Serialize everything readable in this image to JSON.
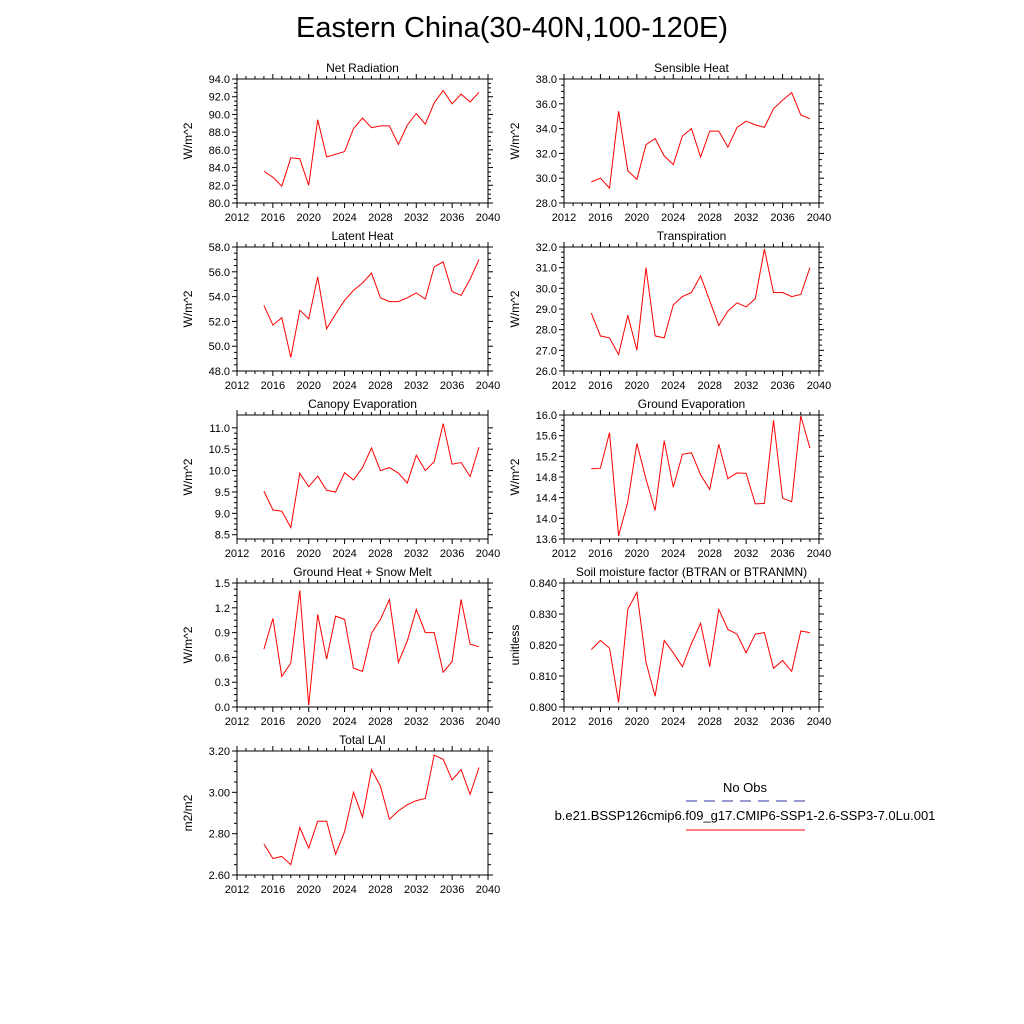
{
  "figure": {
    "title": "Eastern China(30-40N,100-120E)"
  },
  "legend": {
    "entries": [
      {
        "label": "No Obs",
        "color": "#3333aa",
        "style": "dashed"
      },
      {
        "label": "b.e21.BSSP126cmip6.f09_g17.CMIP6-SSP1-2.6-SSP3-7.0Lu.001",
        "color": "#ff0000",
        "style": "solid"
      }
    ]
  },
  "chart_data": [
    {
      "type": "line",
      "title": "Net Radiation",
      "ylabel": "W/m^2",
      "xlim": [
        2012,
        2040
      ],
      "ylim": [
        80,
        94
      ],
      "xticks": [
        2012,
        2016,
        2020,
        2024,
        2028,
        2032,
        2036,
        2040
      ],
      "xtick_labels": [
        "2012",
        "2016",
        "2020",
        "2024",
        "2028",
        "2032",
        "2036",
        "2040"
      ],
      "yticks": [
        80,
        82,
        84,
        86,
        88,
        90,
        92,
        94
      ],
      "ytick_labels": [
        "80.0",
        "82.0",
        "84.0",
        "86.0",
        "88.0",
        "90.0",
        "92.0",
        "94.0"
      ],
      "x": [
        2015,
        2016,
        2017,
        2018,
        2019,
        2020,
        2021,
        2022,
        2023,
        2024,
        2025,
        2026,
        2027,
        2028,
        2029,
        2030,
        2031,
        2032,
        2033,
        2034,
        2035,
        2036,
        2037,
        2038,
        2039
      ],
      "series": [
        {
          "color": "#ff0000",
          "values": [
            83.6,
            82.9,
            81.9,
            85.1,
            85.0,
            82.0,
            89.4,
            85.2,
            85.5,
            85.8,
            88.4,
            89.6,
            88.5,
            88.7,
            88.7,
            86.6,
            88.8,
            90.1,
            88.9,
            91.3,
            92.7,
            91.2,
            92.3,
            91.4,
            92.5
          ]
        }
      ]
    },
    {
      "type": "line",
      "title": "Sensible Heat",
      "ylabel": "W/m^2",
      "xlim": [
        2012,
        2040
      ],
      "ylim": [
        28,
        38
      ],
      "xticks": [
        2012,
        2016,
        2020,
        2024,
        2028,
        2032,
        2036,
        2040
      ],
      "xtick_labels": [
        "2012",
        "2016",
        "2020",
        "2024",
        "2028",
        "2032",
        "2036",
        "2040"
      ],
      "yticks": [
        28,
        30,
        32,
        34,
        36,
        38
      ],
      "ytick_labels": [
        "28.0",
        "30.0",
        "32.0",
        "34.0",
        "36.0",
        "38.0"
      ],
      "x": [
        2015,
        2016,
        2017,
        2018,
        2019,
        2020,
        2021,
        2022,
        2023,
        2024,
        2025,
        2026,
        2027,
        2028,
        2029,
        2030,
        2031,
        2032,
        2033,
        2034,
        2035,
        2036,
        2037,
        2038,
        2039
      ],
      "series": [
        {
          "color": "#ff0000",
          "values": [
            29.7,
            30.0,
            29.2,
            35.4,
            30.6,
            29.9,
            32.7,
            33.2,
            31.8,
            31.1,
            33.4,
            34.0,
            31.7,
            33.8,
            33.8,
            32.5,
            34.1,
            34.6,
            34.3,
            34.1,
            35.6,
            36.3,
            36.9,
            35.1,
            34.8
          ]
        }
      ]
    },
    {
      "type": "line",
      "title": "Latent Heat",
      "ylabel": "W/m^2",
      "xlim": [
        2012,
        2040
      ],
      "ylim": [
        48,
        58
      ],
      "xticks": [
        2012,
        2016,
        2020,
        2024,
        2028,
        2032,
        2036,
        2040
      ],
      "xtick_labels": [
        "2012",
        "2016",
        "2020",
        "2024",
        "2028",
        "2032",
        "2036",
        "2040"
      ],
      "yticks": [
        48,
        50,
        52,
        54,
        56,
        58
      ],
      "ytick_labels": [
        "48.0",
        "50.0",
        "52.0",
        "54.0",
        "56.0",
        "58.0"
      ],
      "x": [
        2015,
        2016,
        2017,
        2018,
        2019,
        2020,
        2021,
        2022,
        2023,
        2024,
        2025,
        2026,
        2027,
        2028,
        2029,
        2030,
        2031,
        2032,
        2033,
        2034,
        2035,
        2036,
        2037,
        2038,
        2039
      ],
      "series": [
        {
          "color": "#ff0000",
          "values": [
            53.3,
            51.7,
            52.3,
            49.1,
            52.9,
            52.2,
            55.6,
            51.4,
            52.6,
            53.7,
            54.5,
            55.1,
            55.9,
            53.9,
            53.6,
            53.6,
            53.9,
            54.3,
            53.8,
            56.4,
            56.8,
            54.4,
            54.1,
            55.4,
            57.0
          ]
        }
      ]
    },
    {
      "type": "line",
      "title": "Transpiration",
      "ylabel": "W/m^2",
      "xlim": [
        2012,
        2040
      ],
      "ylim": [
        26,
        32
      ],
      "xticks": [
        2012,
        2016,
        2020,
        2024,
        2028,
        2032,
        2036,
        2040
      ],
      "xtick_labels": [
        "2012",
        "2016",
        "2020",
        "2024",
        "2028",
        "2032",
        "2036",
        "2040"
      ],
      "yticks": [
        26,
        27,
        28,
        29,
        30,
        31,
        32
      ],
      "ytick_labels": [
        "26.0",
        "27.0",
        "28.0",
        "29.0",
        "30.0",
        "31.0",
        "32.0"
      ],
      "x": [
        2015,
        2016,
        2017,
        2018,
        2019,
        2020,
        2021,
        2022,
        2023,
        2024,
        2025,
        2026,
        2027,
        2028,
        2029,
        2030,
        2031,
        2032,
        2033,
        2034,
        2035,
        2036,
        2037,
        2038,
        2039
      ],
      "series": [
        {
          "color": "#ff0000",
          "values": [
            28.8,
            27.7,
            27.6,
            26.8,
            28.7,
            27.0,
            31.0,
            27.7,
            27.6,
            29.2,
            29.6,
            29.8,
            30.6,
            29.4,
            28.2,
            28.9,
            29.3,
            29.1,
            29.5,
            31.9,
            29.8,
            29.8,
            29.6,
            29.7,
            31.0
          ]
        }
      ]
    },
    {
      "type": "line",
      "title": "Canopy Evaporation",
      "ylabel": "W/m^2",
      "xlim": [
        2012,
        2040
      ],
      "ylim": [
        8.4,
        11.3
      ],
      "xticks": [
        2012,
        2016,
        2020,
        2024,
        2028,
        2032,
        2036,
        2040
      ],
      "xtick_labels": [
        "2012",
        "2016",
        "2020",
        "2024",
        "2028",
        "2032",
        "2036",
        "2040"
      ],
      "yticks": [
        8.5,
        9.0,
        9.5,
        10.0,
        10.5,
        11.0
      ],
      "ytick_labels": [
        "8.5",
        "9.0",
        "9.5",
        "10.0",
        "10.5",
        "11.0"
      ],
      "x": [
        2015,
        2016,
        2017,
        2018,
        2019,
        2020,
        2021,
        2022,
        2023,
        2024,
        2025,
        2026,
        2027,
        2028,
        2029,
        2030,
        2031,
        2032,
        2033,
        2034,
        2035,
        2036,
        2037,
        2038,
        2039
      ],
      "series": [
        {
          "color": "#ff0000",
          "values": [
            9.52,
            9.08,
            9.05,
            8.67,
            9.94,
            9.62,
            9.87,
            9.54,
            9.5,
            9.95,
            9.78,
            10.07,
            10.53,
            10.0,
            10.07,
            9.94,
            9.71,
            10.36,
            10.0,
            10.21,
            11.1,
            10.15,
            10.19,
            9.86,
            10.55
          ]
        }
      ]
    },
    {
      "type": "line",
      "title": "Ground Evaporation",
      "ylabel": "W/m^2",
      "xlim": [
        2012,
        2040
      ],
      "ylim": [
        13.6,
        16.0
      ],
      "xticks": [
        2012,
        2016,
        2020,
        2024,
        2028,
        2032,
        2036,
        2040
      ],
      "xtick_labels": [
        "2012",
        "2016",
        "2020",
        "2024",
        "2028",
        "2032",
        "2036",
        "2040"
      ],
      "yticks": [
        13.6,
        14.0,
        14.4,
        14.8,
        15.2,
        15.6,
        16.0
      ],
      "ytick_labels": [
        "13.6",
        "14.0",
        "14.4",
        "14.8",
        "15.2",
        "15.6",
        "16.0"
      ],
      "x": [
        2015,
        2016,
        2017,
        2018,
        2019,
        2020,
        2021,
        2022,
        2023,
        2024,
        2025,
        2026,
        2027,
        2028,
        2029,
        2030,
        2031,
        2032,
        2033,
        2034,
        2035,
        2036,
        2037,
        2038,
        2039
      ],
      "series": [
        {
          "color": "#ff0000",
          "values": [
            14.96,
            14.97,
            15.66,
            13.66,
            14.32,
            15.45,
            14.76,
            14.15,
            15.5,
            14.6,
            15.24,
            15.27,
            14.84,
            14.56,
            15.43,
            14.77,
            14.88,
            14.87,
            14.28,
            14.29,
            15.9,
            14.39,
            14.32,
            15.98,
            15.36
          ]
        }
      ]
    },
    {
      "type": "line",
      "title": "Ground Heat + Snow Melt",
      "ylabel": "W/m^2",
      "xlim": [
        2012,
        2040
      ],
      "ylim": [
        0,
        1.5
      ],
      "xticks": [
        2012,
        2016,
        2020,
        2024,
        2028,
        2032,
        2036,
        2040
      ],
      "xtick_labels": [
        "2012",
        "2016",
        "2020",
        "2024",
        "2028",
        "2032",
        "2036",
        "2040"
      ],
      "yticks": [
        0.0,
        0.3,
        0.6,
        0.9,
        1.2,
        1.5
      ],
      "ytick_labels": [
        "0.0",
        "0.3",
        "0.6",
        "0.9",
        "1.2",
        "1.5"
      ],
      "x": [
        2015,
        2016,
        2017,
        2018,
        2019,
        2020,
        2021,
        2022,
        2023,
        2024,
        2025,
        2026,
        2027,
        2028,
        2029,
        2030,
        2031,
        2032,
        2033,
        2034,
        2035,
        2036,
        2037,
        2038,
        2039
      ],
      "series": [
        {
          "color": "#ff0000",
          "values": [
            0.7,
            1.07,
            0.37,
            0.53,
            1.41,
            0.02,
            1.12,
            0.58,
            1.1,
            1.06,
            0.47,
            0.43,
            0.89,
            1.06,
            1.3,
            0.54,
            0.8,
            1.18,
            0.9,
            0.9,
            0.42,
            0.55,
            1.3,
            0.76,
            0.73
          ]
        }
      ]
    },
    {
      "type": "line",
      "title": "Soil moisture factor (BTRAN or BTRANMN)",
      "ylabel": "unitless",
      "xlim": [
        2012,
        2040
      ],
      "ylim": [
        0.8,
        0.84
      ],
      "xticks": [
        2012,
        2016,
        2020,
        2024,
        2028,
        2032,
        2036,
        2040
      ],
      "xtick_labels": [
        "2012",
        "2016",
        "2020",
        "2024",
        "2028",
        "2032",
        "2036",
        "2040"
      ],
      "yticks": [
        0.8,
        0.81,
        0.82,
        0.83,
        0.84
      ],
      "ytick_labels": [
        "0.800",
        "0.810",
        "0.820",
        "0.830",
        "0.840"
      ],
      "x": [
        2015,
        2016,
        2017,
        2018,
        2019,
        2020,
        2021,
        2022,
        2023,
        2024,
        2025,
        2026,
        2027,
        2028,
        2029,
        2030,
        2031,
        2032,
        2033,
        2034,
        2035,
        2036,
        2037,
        2038,
        2039
      ],
      "series": [
        {
          "color": "#ff0000",
          "values": [
            0.8185,
            0.8215,
            0.819,
            0.8015,
            0.8315,
            0.837,
            0.8145,
            0.8035,
            0.8215,
            0.8175,
            0.813,
            0.8205,
            0.827,
            0.813,
            0.8315,
            0.825,
            0.8235,
            0.8175,
            0.8235,
            0.824,
            0.8125,
            0.815,
            0.8115,
            0.8245,
            0.824
          ]
        }
      ]
    },
    {
      "type": "line",
      "title": "Total LAI",
      "ylabel": "m2/m2",
      "xlim": [
        2012,
        2040
      ],
      "ylim": [
        2.6,
        3.2
      ],
      "xticks": [
        2012,
        2016,
        2020,
        2024,
        2028,
        2032,
        2036,
        2040
      ],
      "xtick_labels": [
        "2012",
        "2016",
        "2020",
        "2024",
        "2028",
        "2032",
        "2036",
        "2040"
      ],
      "yticks": [
        2.6,
        2.8,
        3.0,
        3.2
      ],
      "ytick_labels": [
        "2.60",
        "2.80",
        "3.00",
        "3.20"
      ],
      "x": [
        2015,
        2016,
        2017,
        2018,
        2019,
        2020,
        2021,
        2022,
        2023,
        2024,
        2025,
        2026,
        2027,
        2028,
        2029,
        2030,
        2031,
        2032,
        2033,
        2034,
        2035,
        2036,
        2037,
        2038,
        2039
      ],
      "series": [
        {
          "color": "#ff0000",
          "values": [
            2.75,
            2.68,
            2.69,
            2.65,
            2.83,
            2.73,
            2.86,
            2.86,
            2.7,
            2.81,
            3.0,
            2.88,
            3.11,
            3.03,
            2.87,
            2.91,
            2.94,
            2.96,
            2.97,
            3.18,
            3.16,
            3.06,
            3.11,
            2.99,
            3.12
          ]
        }
      ]
    }
  ]
}
